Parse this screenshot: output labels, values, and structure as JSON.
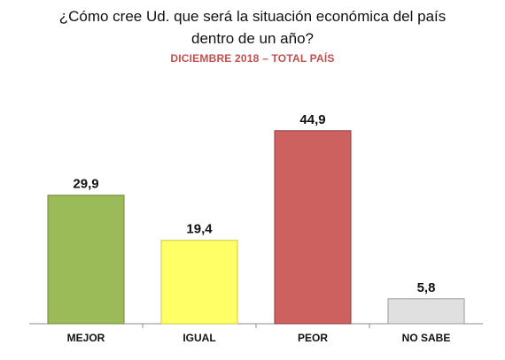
{
  "header": {
    "title_line1": "¿Cómo cree Ud. que será la situación económica del país",
    "title_line2": "dentro de un año?",
    "subtitle": "DICIEMBRE 2018  – TOTAL PAÍS"
  },
  "chart_data": {
    "type": "bar",
    "title": "¿Cómo cree Ud. que será la situación económica del país dentro de un año?",
    "subtitle": "DICIEMBRE 2018  – TOTAL PAÍS",
    "categories": [
      "MEJOR",
      "IGUAL",
      "PEOR",
      "NO SABE"
    ],
    "values": [
      29.9,
      19.4,
      44.9,
      5.8
    ],
    "value_labels": [
      "29,9",
      "19,4",
      "44,9",
      "5,8"
    ],
    "bar_colors": [
      "#9bbb59",
      "#ffff66",
      "#cc6160",
      "#e0e0e0"
    ],
    "bar_border_colors": [
      "#6f8a3a",
      "#c9c94a",
      "#8e3b3a",
      "#9a9a9a"
    ],
    "ylim": [
      0,
      50
    ],
    "grid": false,
    "legend": "none"
  }
}
